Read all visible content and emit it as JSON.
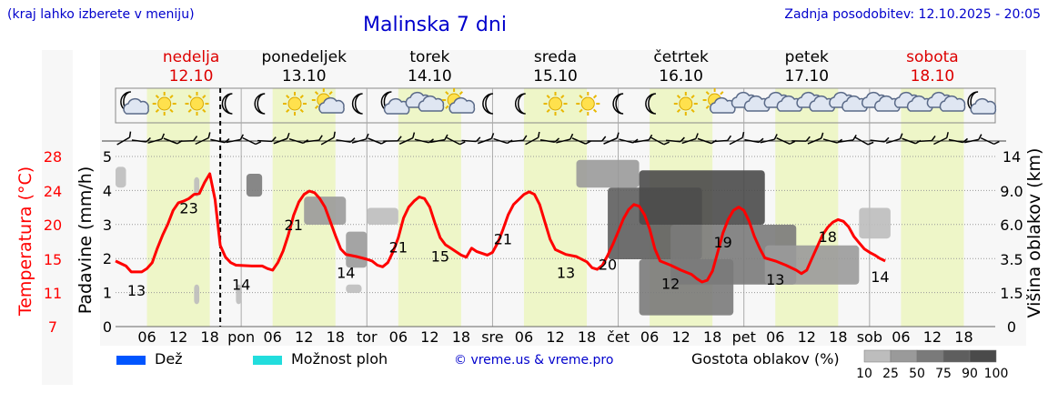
{
  "header": {
    "note": "(kraj lahko izberete v meniju)",
    "title": "Malinska 7 dni",
    "updated": "Zadnja posodobitev: 12.10.2025 - 20:05"
  },
  "colors": {
    "temperature": "#ff0000",
    "axis_text": "#000000",
    "header_text": "#0000cc",
    "day_band": "#eef6c8",
    "weekend": "#dd0000",
    "rain": "#0055ff",
    "storm": "#22dddd"
  },
  "legend": {
    "rain": "Dež",
    "storm": "Možnost ploh",
    "credit": "© vreme.us & vreme.pro",
    "cloud_density": "Gostota oblakov (%)",
    "cloud_levels": [
      "10",
      "25",
      "50",
      "75",
      "90",
      "100"
    ]
  },
  "chart_data": {
    "type": "line",
    "title": "Malinska 7 dni",
    "x_range_hours": [
      0,
      168
    ],
    "days": [
      {
        "name": "nedelja",
        "date": "12.10",
        "weekend": true
      },
      {
        "name": "ponedeljek",
        "date": "13.10",
        "weekend": false
      },
      {
        "name": "torek",
        "date": "14.10",
        "weekend": false
      },
      {
        "name": "sreda",
        "date": "15.10",
        "weekend": false
      },
      {
        "name": "četrtek",
        "date": "16.10",
        "weekend": false
      },
      {
        "name": "petek",
        "date": "17.10",
        "weekend": false
      },
      {
        "name": "sobota",
        "date": "18.10",
        "weekend": true
      }
    ],
    "x_day_labels": [
      "pon",
      "tor",
      "sre",
      "čet",
      "pet",
      "sob"
    ],
    "x_hour_labels": [
      "06",
      "12",
      "18"
    ],
    "now_hour": 20,
    "left_axis": {
      "label": "Padavine (mm/h)",
      "range": [
        0,
        5
      ],
      "ticks": [
        "0",
        "1",
        "2",
        "3",
        "4",
        "5"
      ]
    },
    "temp_axis": {
      "label": "Temperatura (°C)",
      "ticks": [
        "7",
        "11",
        "15",
        "20",
        "24",
        "28"
      ]
    },
    "right_axis": {
      "label": "Višina oblakov (km)",
      "ticks": [
        "0",
        "1.5",
        "3.5",
        "6.0",
        "9.0",
        "14"
      ]
    },
    "temperature_series": {
      "name": "Temperatura",
      "points": [
        [
          0,
          14.8
        ],
        [
          2,
          14.2
        ],
        [
          3,
          13.5
        ],
        [
          5,
          13.5
        ],
        [
          6,
          13.9
        ],
        [
          7,
          14.6
        ],
        [
          8,
          16.6
        ],
        [
          9,
          18.5
        ],
        [
          10,
          20.1
        ],
        [
          11,
          21.7
        ],
        [
          12,
          22.6
        ],
        [
          13,
          22.8
        ],
        [
          14,
          23.1
        ],
        [
          15,
          23.6
        ],
        [
          16,
          23.7
        ],
        [
          17,
          25.0
        ],
        [
          18,
          26.0
        ],
        [
          19,
          23.0
        ],
        [
          20,
          17.0
        ],
        [
          21,
          15.3
        ],
        [
          22,
          14.6
        ],
        [
          23,
          14.3
        ],
        [
          26,
          14.2
        ],
        [
          28,
          14.2
        ],
        [
          29,
          13.9
        ],
        [
          30,
          13.7
        ],
        [
          31,
          14.6
        ],
        [
          32,
          16.2
        ],
        [
          33,
          18.5
        ],
        [
          34,
          21.1
        ],
        [
          35,
          22.7
        ],
        [
          36,
          23.6
        ],
        [
          37,
          24.0
        ],
        [
          38,
          23.8
        ],
        [
          39,
          23.1
        ],
        [
          40,
          22.1
        ],
        [
          41,
          20.4
        ],
        [
          42,
          18.4
        ],
        [
          43,
          16.5
        ],
        [
          44,
          15.7
        ],
        [
          46,
          15.4
        ],
        [
          48,
          15.0
        ],
        [
          49,
          14.8
        ],
        [
          50,
          14.3
        ],
        [
          51,
          14.1
        ],
        [
          52,
          14.6
        ],
        [
          53,
          16.1
        ],
        [
          54,
          18.1
        ],
        [
          55,
          20.8
        ],
        [
          56,
          22.1
        ],
        [
          57,
          22.8
        ],
        [
          58,
          23.3
        ],
        [
          59,
          23.1
        ],
        [
          60,
          22.1
        ],
        [
          61,
          20.2
        ],
        [
          62,
          18.1
        ],
        [
          63,
          17.1
        ],
        [
          64,
          16.6
        ],
        [
          66,
          15.6
        ],
        [
          67,
          15.3
        ],
        [
          68,
          16.6
        ],
        [
          69,
          16.1
        ],
        [
          71,
          15.6
        ],
        [
          72,
          16.0
        ],
        [
          73,
          17.4
        ],
        [
          74,
          19.3
        ],
        [
          75,
          21.2
        ],
        [
          76,
          22.4
        ],
        [
          77,
          23.0
        ],
        [
          78,
          23.6
        ],
        [
          79,
          23.9
        ],
        [
          80,
          23.6
        ],
        [
          81,
          22.4
        ],
        [
          82,
          20.3
        ],
        [
          83,
          17.9
        ],
        [
          84,
          16.4
        ],
        [
          86,
          15.7
        ],
        [
          88,
          15.4
        ],
        [
          90,
          14.7
        ],
        [
          91,
          14.0
        ],
        [
          92,
          13.8
        ],
        [
          93,
          14.3
        ],
        [
          94,
          15.6
        ],
        [
          95,
          17.2
        ],
        [
          96,
          19.0
        ],
        [
          97,
          20.7
        ],
        [
          98,
          21.8
        ],
        [
          99,
          22.4
        ],
        [
          100,
          22.2
        ],
        [
          101,
          21.2
        ],
        [
          102,
          19.4
        ],
        [
          103,
          16.5
        ],
        [
          104,
          14.8
        ],
        [
          106,
          14.3
        ],
        [
          108,
          13.7
        ],
        [
          110,
          13.2
        ],
        [
          111,
          12.7
        ],
        [
          112,
          12.3
        ],
        [
          113,
          12.5
        ],
        [
          114,
          13.6
        ],
        [
          115,
          16.0
        ],
        [
          116,
          18.8
        ],
        [
          117,
          20.6
        ],
        [
          118,
          21.7
        ],
        [
          119,
          22.1
        ],
        [
          120,
          21.7
        ],
        [
          121,
          20.4
        ],
        [
          122,
          18.3
        ],
        [
          123,
          16.6
        ],
        [
          124,
          15.2
        ],
        [
          126,
          14.8
        ],
        [
          128,
          14.3
        ],
        [
          130,
          13.7
        ],
        [
          131,
          13.3
        ],
        [
          132,
          13.7
        ],
        [
          133,
          15.1
        ],
        [
          134,
          16.8
        ],
        [
          135,
          18.5
        ],
        [
          136,
          19.6
        ],
        [
          137,
          20.3
        ],
        [
          138,
          20.6
        ],
        [
          139,
          20.4
        ],
        [
          140,
          19.7
        ],
        [
          141,
          18.3
        ],
        [
          142,
          17.4
        ],
        [
          143,
          16.5
        ],
        [
          144,
          16.0
        ],
        [
          145,
          15.6
        ],
        [
          146,
          15.1
        ],
        [
          147,
          14.8
        ]
      ]
    },
    "temperature_labels": [
      {
        "hour": 4,
        "value": "13"
      },
      {
        "hour": 14,
        "value": "23"
      },
      {
        "hour": 24,
        "value": "14"
      },
      {
        "hour": 34,
        "value": "21"
      },
      {
        "hour": 44,
        "value": "14"
      },
      {
        "hour": 54,
        "value": "21"
      },
      {
        "hour": 62,
        "value": "15"
      },
      {
        "hour": 74,
        "value": "21"
      },
      {
        "hour": 86,
        "value": "13"
      },
      {
        "hour": 94,
        "value": "20"
      },
      {
        "hour": 106,
        "value": "12"
      },
      {
        "hour": 116,
        "value": "19"
      },
      {
        "hour": 126,
        "value": "13"
      },
      {
        "hour": 136,
        "value": "18"
      },
      {
        "hour": 146,
        "value": "14"
      }
    ],
    "weather_icons": [
      "moon-cloud",
      "sun",
      "sun",
      "moon",
      "moon",
      "sun",
      "sun-cloud",
      "moon",
      "moon-cloud",
      "cloud",
      "sun-cloud",
      "moon",
      "moon",
      "sun",
      "sun",
      "moon",
      "moon",
      "sun",
      "sun-cloud",
      "cloud",
      "cloud",
      "cloud",
      "cloud",
      "cloud",
      "cloud",
      "cloud",
      "moon-cloud"
    ],
    "wind_arrows_count": 56,
    "cloud_cover": [
      {
        "h0": 0,
        "h1": 2,
        "km0": 9.5,
        "km1": 12.5,
        "level": 25
      },
      {
        "h0": 15,
        "h1": 16,
        "km0": 8.5,
        "km1": 11,
        "level": 25
      },
      {
        "h0": 15,
        "h1": 16,
        "km0": 1.0,
        "km1": 2.0,
        "level": 25
      },
      {
        "h0": 23,
        "h1": 24,
        "km0": 1.0,
        "km1": 2.0,
        "level": 25
      },
      {
        "h0": 25,
        "h1": 28,
        "km0": 8.5,
        "km1": 11.5,
        "level": 75
      },
      {
        "h0": 36,
        "h1": 44,
        "km0": 6.0,
        "km1": 8.5,
        "level": 50
      },
      {
        "h0": 44,
        "h1": 48,
        "km0": 3.0,
        "km1": 5.5,
        "level": 50
      },
      {
        "h0": 48,
        "h1": 54,
        "km0": 6.0,
        "km1": 7.5,
        "level": 25
      },
      {
        "h0": 44,
        "h1": 47,
        "km0": 1.5,
        "km1": 2.0,
        "level": 25
      },
      {
        "h0": 88,
        "h1": 100,
        "km0": 9.5,
        "km1": 13.5,
        "level": 50
      },
      {
        "h0": 94,
        "h1": 112,
        "km0": 3.5,
        "km1": 9.5,
        "level": 90
      },
      {
        "h0": 100,
        "h1": 124,
        "km0": 6.0,
        "km1": 12.0,
        "level": 100
      },
      {
        "h0": 100,
        "h1": 118,
        "km0": 0.5,
        "km1": 3.5,
        "level": 75
      },
      {
        "h0": 106,
        "h1": 130,
        "km0": 2.0,
        "km1": 6.0,
        "level": 75
      },
      {
        "h0": 124,
        "h1": 142,
        "km0": 2.0,
        "km1": 4.5,
        "level": 50
      },
      {
        "h0": 142,
        "h1": 148,
        "km0": 5.0,
        "km1": 7.5,
        "level": 25
      }
    ]
  }
}
